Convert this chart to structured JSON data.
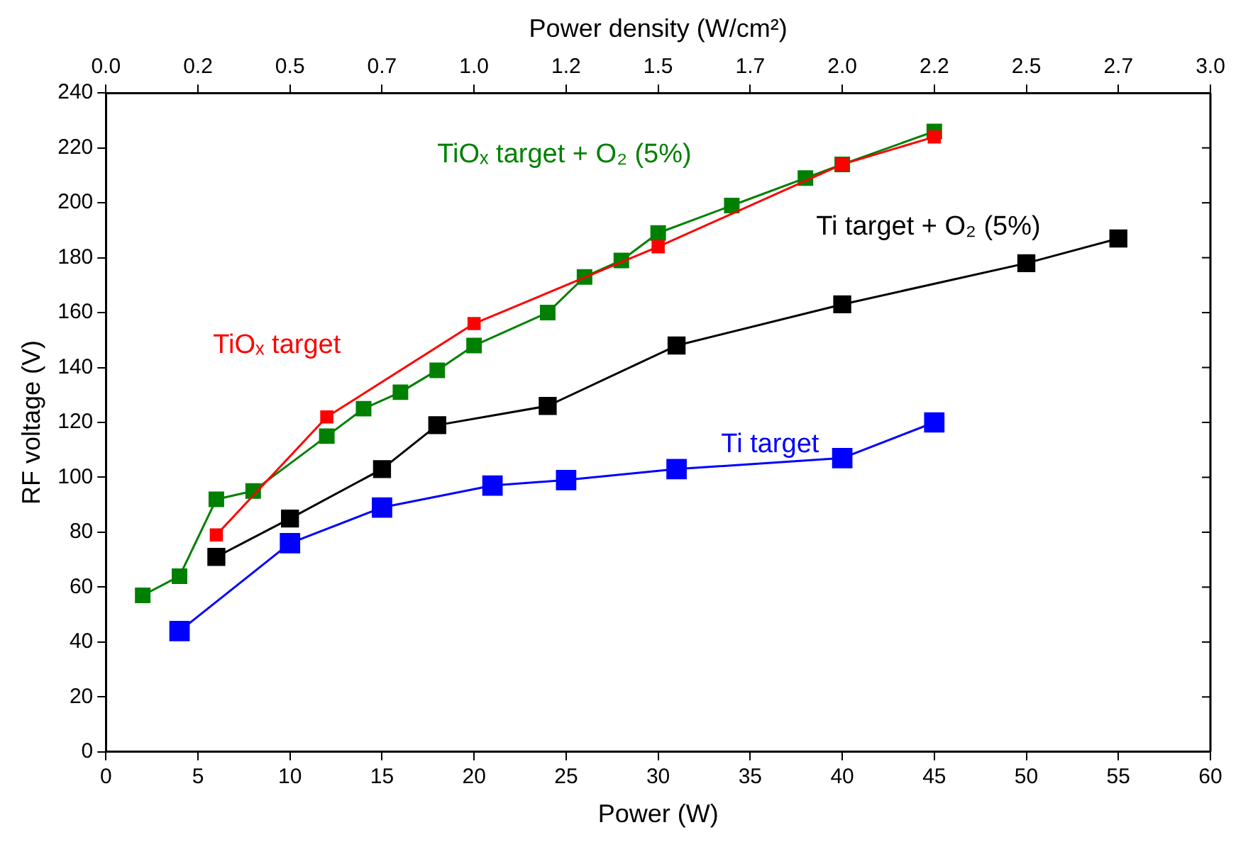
{
  "chart_data": {
    "type": "line",
    "xlabel": "Power (W)",
    "ylabel": "RF voltage (V)",
    "x2label": "Power density (W/cm²)",
    "xlim": [
      0,
      60
    ],
    "xticks": [
      0,
      5,
      10,
      15,
      20,
      25,
      30,
      35,
      40,
      45,
      50,
      55,
      60
    ],
    "x2lim": [
      0,
      3
    ],
    "x2ticks": [
      {
        "value": 0,
        "label": "0.0"
      },
      {
        "value": 0.25,
        "label": "0.2"
      },
      {
        "value": 0.5,
        "label": "0.5"
      },
      {
        "value": 0.75,
        "label": "0.7"
      },
      {
        "value": 1,
        "label": "1.0"
      },
      {
        "value": 1.25,
        "label": "1.2"
      },
      {
        "value": 1.5,
        "label": "1.5"
      },
      {
        "value": 1.75,
        "label": "1.7"
      },
      {
        "value": 2,
        "label": "2.0"
      },
      {
        "value": 2.25,
        "label": "2.2"
      },
      {
        "value": 2.5,
        "label": "2.5"
      },
      {
        "value": 2.75,
        "label": "2.7"
      },
      {
        "value": 3,
        "label": "3.0"
      }
    ],
    "ylim": [
      0,
      240
    ],
    "yticks": [
      0,
      20,
      40,
      60,
      80,
      100,
      120,
      140,
      160,
      180,
      200,
      220,
      240
    ],
    "grid": false,
    "legend": false,
    "marker": "square",
    "line_style": "solid",
    "series": [
      {
        "name": "TiOₓ target",
        "color": "#ff0000",
        "x": [
          6,
          12,
          20,
          30,
          40,
          45
        ],
        "values": [
          79,
          122,
          156,
          184,
          214,
          224
        ]
      },
      {
        "name": "TiOₓ target + O₂ (5%)",
        "color": "#008000",
        "x": [
          2,
          4,
          6,
          8,
          12,
          14,
          16,
          18,
          20,
          24,
          26,
          28,
          30,
          34,
          38,
          40,
          45
        ],
        "values": [
          57,
          64,
          92,
          95,
          115,
          125,
          131,
          139,
          148,
          160,
          173,
          179,
          189,
          199,
          209,
          214,
          226
        ]
      },
      {
        "name": "Ti target + O₂ (5%)",
        "color": "#000000",
        "x": [
          6,
          10,
          15,
          18,
          24,
          31,
          40,
          50,
          55
        ],
        "values": [
          71,
          85,
          103,
          119,
          126,
          148,
          163,
          178,
          187
        ]
      },
      {
        "name": "Ti target",
        "color": "#0000ff",
        "x": [
          4,
          10,
          15,
          21,
          25,
          31,
          40,
          45
        ],
        "values": [
          44,
          76,
          89,
          97,
          99,
          103,
          107,
          120
        ]
      }
    ]
  }
}
